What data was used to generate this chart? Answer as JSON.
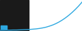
{
  "x": [
    0,
    1,
    2,
    3,
    4,
    5,
    6,
    7,
    8,
    9,
    10,
    11,
    12,
    13,
    14,
    15,
    16,
    17,
    18,
    19,
    20,
    21,
    22,
    23,
    24,
    25
  ],
  "y": [
    0.5,
    0.5,
    0.6,
    0.6,
    0.7,
    0.7,
    0.8,
    0.9,
    1.0,
    1.1,
    1.3,
    1.5,
    1.8,
    2.2,
    2.7,
    3.4,
    4.2,
    5.2,
    6.4,
    7.8,
    9.4,
    11.2,
    13.2,
    15.4,
    17.8,
    20.5
  ],
  "line_color": "#2da8e0",
  "line_width": 1.0,
  "background_color": "#ffffff",
  "left_bg_color": "#1a1a1a",
  "left_bg_end": 0.35,
  "ylim": [
    0,
    22
  ],
  "xlim": [
    0,
    25
  ],
  "legend_color": "#2da8e0",
  "figsize": [
    1.2,
    0.45
  ],
  "dpi": 100
}
